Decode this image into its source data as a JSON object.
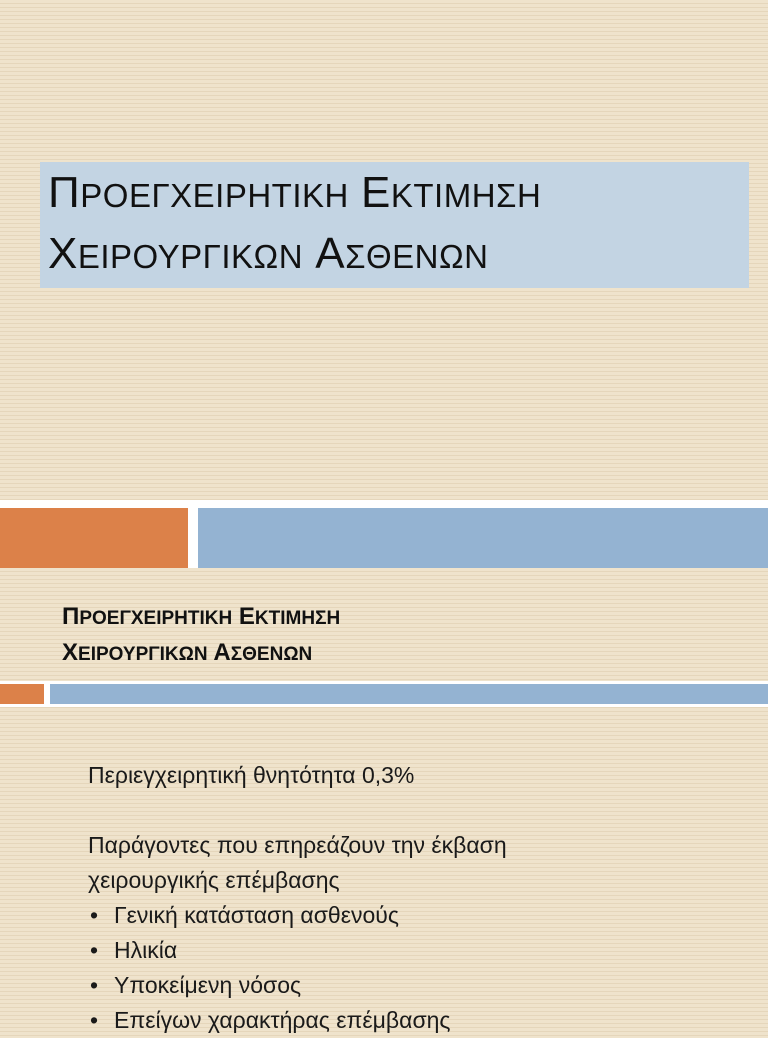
{
  "slide1": {
    "title_line1_initial": "Π",
    "title_line1_rest": "ΡΟΕΓΧΕΙΡΗΤΙΚΗ",
    "title_line1_word2_initial": "Ε",
    "title_line1_word2_rest": "ΚΤΙΜΗΣΗ",
    "title_line2_initial": "Χ",
    "title_line2_rest": "ΕΙΡΟΥΡΓΙΚΩΝ",
    "title_line2_word2_initial": "Α",
    "title_line2_word2_rest": "ΣΘΕΝΩΝ"
  },
  "slide2": {
    "title_line1_initial": "Π",
    "title_line1_rest": "ΡΟΕΓΧΕΙΡΗΤΙΚΗ",
    "title_line1_word2_initial": "Ε",
    "title_line1_word2_rest": "ΚΤΙΜΗΣΗ",
    "title_line2_initial": "Χ",
    "title_line2_rest": "ΕΙΡΟΥΡΓΙΚΩΝ",
    "title_line2_word2_initial": "Α",
    "title_line2_word2_rest": "ΣΘΕΝΩΝ",
    "mortality_text": "Περιεγχειρητική θνητότητα 0,3%",
    "factors_line1": "Παράγοντες που επηρεάζουν την έκβαση",
    "factors_line2": "χειρουργικής επέμβασης",
    "bullet_symbol": "•",
    "bullets": [
      "Γενική κατάσταση ασθενούς",
      "Ηλικία",
      "Υποκείμενη νόσος",
      "Επείγων χαρακτήρας επέμβασης"
    ]
  },
  "colors": {
    "title_box": "#c3d4e3",
    "orange_bar": "#dc8149",
    "blue_bar": "#94b3d2",
    "background": "#efe3cc"
  }
}
